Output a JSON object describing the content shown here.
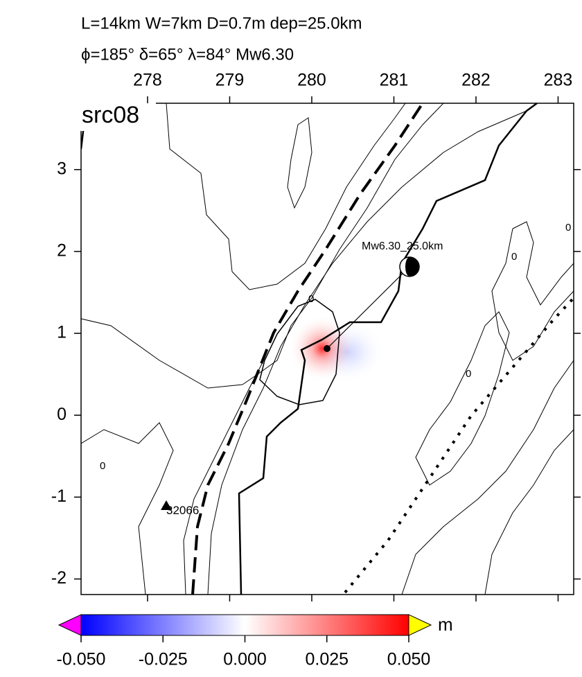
{
  "title_lines": [
    "L=14km W=7km D=0.7m dep=25.0km",
    "ϕ=185° δ=65° λ=84° Mw6.30"
  ],
  "panel_label": "src08",
  "map": {
    "xlim": [
      277.19,
      283.19
    ],
    "ylim": [
      -2.19,
      3.81
    ],
    "xticks": [
      278,
      279,
      280,
      281,
      282,
      283
    ],
    "yticks": [
      -2,
      -1,
      0,
      1,
      2,
      3
    ]
  },
  "annotations": {
    "event": "Mw6.30_25.0km",
    "station": "32066",
    "contour_labels": [
      "0",
      "0",
      "0",
      "0",
      "0"
    ]
  },
  "colorbar": {
    "unit": "m",
    "lim": [
      -0.05,
      0.05
    ],
    "ticks": [
      {
        "value": -0.05,
        "label": "-0.050"
      },
      {
        "value": -0.025,
        "label": "-0.025"
      },
      {
        "value": 0,
        "label": "0.000"
      },
      {
        "value": 0.025,
        "label": "0.025"
      },
      {
        "value": 0.05,
        "label": "0.050"
      }
    ]
  }
}
